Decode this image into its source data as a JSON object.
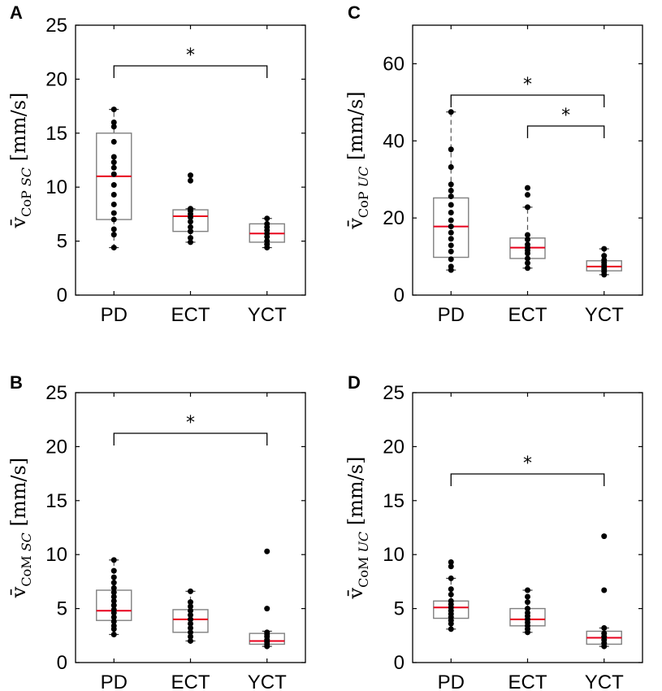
{
  "chart_data": [
    {
      "panel": "A",
      "type": "box",
      "categories": [
        "PD",
        "ECT",
        "YCT"
      ],
      "ylabel": {
        "main": "v̄",
        "sub_roman": "CoP",
        "sub_italic": "SC",
        "unit": "[mm/s]"
      },
      "ylim": [
        0,
        25
      ],
      "yticks": [
        0,
        5,
        10,
        15,
        20,
        25
      ],
      "boxes": [
        {
          "q1": 7.0,
          "median": 11.0,
          "q3": 15.0,
          "whisker_low": 4.4,
          "whisker_high": 17.2,
          "points": [
            4.4,
            5.6,
            6.1,
            7.0,
            7.6,
            8.4,
            9.3,
            10.2,
            11.2,
            11.8,
            12.3,
            12.8,
            14.2,
            15.6,
            16.0,
            17.2
          ]
        },
        {
          "q1": 5.9,
          "median": 7.3,
          "q3": 7.9,
          "whisker_low": 4.9,
          "whisker_high": 8.0,
          "points": [
            4.9,
            5.3,
            5.9,
            6.3,
            6.8,
            7.2,
            7.5,
            7.8,
            8.0,
            10.6,
            11.1
          ]
        },
        {
          "q1": 4.9,
          "median": 5.7,
          "q3": 6.6,
          "whisker_low": 4.4,
          "whisker_high": 7.1,
          "points": [
            4.4,
            4.7,
            5.0,
            5.4,
            5.7,
            6.0,
            6.3,
            6.6,
            7.1
          ]
        }
      ],
      "significance": [
        {
          "from": 0,
          "to": 2,
          "label": "*"
        }
      ]
    },
    {
      "panel": "C",
      "type": "box",
      "categories": [
        "PD",
        "ECT",
        "YCT"
      ],
      "ylabel": {
        "main": "v̄",
        "sub_roman": "CoP",
        "sub_italic": "UC",
        "unit": "[mm/s]"
      },
      "ylim": [
        0,
        70
      ],
      "yticks": [
        0,
        20,
        40,
        60
      ],
      "boxes": [
        {
          "q1": 9.8,
          "median": 17.8,
          "q3": 25.2,
          "whisker_low": 6.5,
          "whisker_high": 47.5,
          "points": [
            6.5,
            7.4,
            9.3,
            11.3,
            12.9,
            14.6,
            16.2,
            17.8,
            19.4,
            21.4,
            23.4,
            25.6,
            27.1,
            28.7,
            33.2,
            37.8,
            47.5
          ]
        },
        {
          "q1": 9.5,
          "median": 12.3,
          "q3": 14.8,
          "whisker_low": 7.0,
          "whisker_high": 22.8,
          "points": [
            7.0,
            8.3,
            9.5,
            10.8,
            11.6,
            12.3,
            13.1,
            14.4,
            15.6,
            22.8,
            26.0,
            27.8
          ]
        },
        {
          "q1": 6.3,
          "median": 7.4,
          "q3": 8.9,
          "whisker_low": 5.3,
          "whisker_high": 12.0,
          "points": [
            5.3,
            6.1,
            6.7,
            7.2,
            7.8,
            8.4,
            9.1,
            10.2,
            12.0
          ]
        }
      ],
      "significance": [
        {
          "from": 0,
          "to": 2,
          "label": "*"
        },
        {
          "from": 1,
          "to": 2,
          "label": "*"
        }
      ]
    },
    {
      "panel": "B",
      "type": "box",
      "categories": [
        "PD",
        "ECT",
        "YCT"
      ],
      "ylabel": {
        "main": "v̄",
        "sub_roman": "CoM",
        "sub_italic": "SC",
        "unit": "[mm/s]"
      },
      "ylim": [
        0,
        25
      ],
      "yticks": [
        0,
        5,
        10,
        15,
        20,
        25
      ],
      "boxes": [
        {
          "q1": 3.9,
          "median": 4.8,
          "q3": 6.7,
          "whisker_low": 2.6,
          "whisker_high": 9.5,
          "points": [
            2.6,
            3.1,
            3.4,
            3.8,
            4.2,
            4.6,
            4.9,
            5.3,
            5.7,
            6.1,
            6.5,
            6.9,
            7.4,
            7.9,
            8.5,
            9.5
          ]
        },
        {
          "q1": 2.8,
          "median": 4.0,
          "q3": 4.9,
          "whisker_low": 2.0,
          "whisker_high": 6.6,
          "points": [
            2.0,
            2.4,
            2.8,
            3.2,
            3.6,
            4.0,
            4.4,
            4.8,
            5.2,
            5.6,
            6.6
          ]
        },
        {
          "q1": 1.7,
          "median": 2.0,
          "q3": 2.7,
          "whisker_low": 1.5,
          "whisker_high": 2.9,
          "points": [
            1.5,
            1.7,
            1.9,
            2.1,
            2.4,
            2.6,
            2.8,
            5.0,
            10.3
          ]
        }
      ],
      "significance": [
        {
          "from": 0,
          "to": 2,
          "label": "*"
        }
      ]
    },
    {
      "panel": "D",
      "type": "box",
      "categories": [
        "PD",
        "ECT",
        "YCT"
      ],
      "ylabel": {
        "main": "v̄",
        "sub_roman": "CoM",
        "sub_italic": "UC",
        "unit": "[mm/s]"
      },
      "ylim": [
        0,
        25
      ],
      "yticks": [
        0,
        5,
        10,
        15,
        20,
        25
      ],
      "boxes": [
        {
          "q1": 4.1,
          "median": 5.1,
          "q3": 5.7,
          "whisker_low": 3.1,
          "whisker_high": 7.8,
          "points": [
            3.1,
            3.6,
            3.9,
            4.2,
            4.5,
            4.8,
            5.1,
            5.4,
            5.7,
            6.3,
            6.8,
            7.8,
            8.9,
            9.3
          ]
        },
        {
          "q1": 3.4,
          "median": 4.0,
          "q3": 5.0,
          "whisker_low": 2.8,
          "whisker_high": 6.7,
          "points": [
            2.8,
            3.1,
            3.4,
            3.7,
            4.0,
            4.3,
            4.6,
            5.0,
            5.6,
            6.1,
            6.7
          ]
        },
        {
          "q1": 1.7,
          "median": 2.3,
          "q3": 2.9,
          "whisker_low": 1.5,
          "whisker_high": 3.2,
          "points": [
            1.5,
            1.8,
            2.1,
            2.4,
            2.7,
            3.2,
            6.7,
            11.7
          ]
        }
      ],
      "significance": [
        {
          "from": 0,
          "to": 2,
          "label": "*"
        }
      ]
    }
  ],
  "colors": {
    "median": "#e8001c",
    "box": "#808080",
    "points": "#000000",
    "axis": "#000000"
  }
}
